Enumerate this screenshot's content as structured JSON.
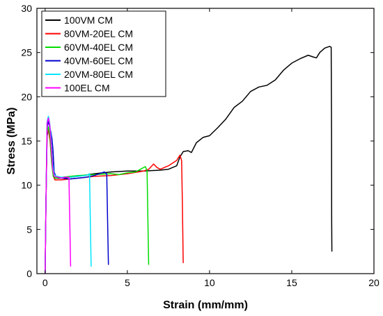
{
  "chart_data": {
    "type": "line",
    "title": "",
    "xlabel": "Strain (mm/mm)",
    "ylabel": "Stress (MPa)",
    "xlim": [
      -0.5,
      20
    ],
    "ylim": [
      0,
      30
    ],
    "xticks": [
      0,
      5,
      10,
      15,
      20
    ],
    "yticks": [
      0,
      5,
      10,
      15,
      20,
      25,
      30
    ],
    "grid": false,
    "legend_position": "top-left",
    "series": [
      {
        "name": "100VM CM",
        "color": "#000000",
        "points": [
          [
            0,
            0
          ],
          [
            0.05,
            8
          ],
          [
            0.12,
            15.5
          ],
          [
            0.2,
            16.4
          ],
          [
            0.3,
            15.6
          ],
          [
            0.4,
            14.2
          ],
          [
            0.5,
            11.2
          ],
          [
            0.6,
            10.8
          ],
          [
            1,
            10.8
          ],
          [
            2,
            11.0
          ],
          [
            3,
            11.3
          ],
          [
            4,
            11.5
          ],
          [
            5,
            11.6
          ],
          [
            6,
            11.6
          ],
          [
            7,
            11.7
          ],
          [
            7.5,
            11.8
          ],
          [
            8,
            12.2
          ],
          [
            8.2,
            13.2
          ],
          [
            8.4,
            13.8
          ],
          [
            8.7,
            13.9
          ],
          [
            8.9,
            13.7
          ],
          [
            9.2,
            14.8
          ],
          [
            9.6,
            15.4
          ],
          [
            10,
            15.6
          ],
          [
            10.5,
            16.5
          ],
          [
            11,
            17.5
          ],
          [
            11.5,
            18.8
          ],
          [
            12,
            19.5
          ],
          [
            12.5,
            20.6
          ],
          [
            13,
            21.1
          ],
          [
            13.5,
            21.3
          ],
          [
            14,
            21.9
          ],
          [
            14.5,
            23.0
          ],
          [
            15,
            23.8
          ],
          [
            15.5,
            24.3
          ],
          [
            16,
            24.7
          ],
          [
            16.3,
            24.5
          ],
          [
            16.5,
            24.4
          ],
          [
            16.7,
            25.0
          ],
          [
            17,
            25.5
          ],
          [
            17.3,
            25.7
          ],
          [
            17.4,
            25.6
          ],
          [
            17.42,
            16
          ],
          [
            17.43,
            6
          ],
          [
            17.44,
            2.5
          ]
        ]
      },
      {
        "name": "80VM-20EL CM",
        "color": "#ff0000",
        "points": [
          [
            0,
            0
          ],
          [
            0.05,
            8
          ],
          [
            0.12,
            15.8
          ],
          [
            0.2,
            16.3
          ],
          [
            0.3,
            15.0
          ],
          [
            0.4,
            12.5
          ],
          [
            0.5,
            11.0
          ],
          [
            0.6,
            10.6
          ],
          [
            1,
            10.6
          ],
          [
            2,
            10.8
          ],
          [
            3,
            11.0
          ],
          [
            4,
            11.1
          ],
          [
            5,
            11.3
          ],
          [
            6,
            11.6
          ],
          [
            6.3,
            11.8
          ],
          [
            6.6,
            12.4
          ],
          [
            6.8,
            12.0
          ],
          [
            7,
            11.8
          ],
          [
            7.5,
            12.2
          ],
          [
            8,
            12.8
          ],
          [
            8.2,
            13.4
          ],
          [
            8.3,
            12.8
          ],
          [
            8.35,
            8
          ],
          [
            8.4,
            1.2
          ]
        ]
      },
      {
        "name": "60VM-40EL CM",
        "color": "#00dd00",
        "points": [
          [
            0,
            0
          ],
          [
            0.05,
            8
          ],
          [
            0.12,
            16.0
          ],
          [
            0.2,
            16.6
          ],
          [
            0.3,
            15.5
          ],
          [
            0.4,
            12.5
          ],
          [
            0.5,
            11.0
          ],
          [
            0.6,
            10.8
          ],
          [
            1,
            10.9
          ],
          [
            2,
            11.1
          ],
          [
            3,
            11.2
          ],
          [
            4,
            11.3
          ],
          [
            4.5,
            11.2
          ],
          [
            5,
            11.4
          ],
          [
            5.5,
            11.5
          ],
          [
            5.8,
            11.8
          ],
          [
            6.1,
            12.1
          ],
          [
            6.2,
            11.6
          ],
          [
            6.25,
            6
          ],
          [
            6.3,
            1.0
          ]
        ]
      },
      {
        "name": "40VM-60EL CM",
        "color": "#0000cc",
        "points": [
          [
            0,
            0
          ],
          [
            0.05,
            8
          ],
          [
            0.12,
            16.5
          ],
          [
            0.2,
            17.2
          ],
          [
            0.28,
            16.6
          ],
          [
            0.35,
            16.0
          ],
          [
            0.42,
            15.2
          ],
          [
            0.48,
            14.0
          ],
          [
            0.55,
            11.5
          ],
          [
            0.65,
            11.0
          ],
          [
            1,
            10.8
          ],
          [
            1.5,
            10.7
          ],
          [
            2,
            10.8
          ],
          [
            2.5,
            10.9
          ],
          [
            3,
            11.1
          ],
          [
            3.3,
            11.3
          ],
          [
            3.6,
            11.5
          ],
          [
            3.75,
            11.3
          ],
          [
            3.8,
            6
          ],
          [
            3.85,
            1.0
          ]
        ]
      },
      {
        "name": "20VM-80EL CM",
        "color": "#00e5ff",
        "points": [
          [
            0,
            0
          ],
          [
            0.05,
            8
          ],
          [
            0.12,
            17.2
          ],
          [
            0.2,
            17.8
          ],
          [
            0.28,
            17.0
          ],
          [
            0.35,
            15.5
          ],
          [
            0.45,
            12.5
          ],
          [
            0.55,
            11.2
          ],
          [
            0.7,
            11.0
          ],
          [
            1,
            10.9
          ],
          [
            1.5,
            10.9
          ],
          [
            2,
            11.0
          ],
          [
            2.5,
            11.1
          ],
          [
            2.7,
            11.3
          ],
          [
            2.75,
            6
          ],
          [
            2.8,
            0.8
          ]
        ]
      },
      {
        "name": "100EL CM",
        "color": "#ff00ff",
        "points": [
          [
            0,
            0
          ],
          [
            0.05,
            8
          ],
          [
            0.12,
            17.0
          ],
          [
            0.2,
            17.6
          ],
          [
            0.28,
            16.8
          ],
          [
            0.35,
            15.0
          ],
          [
            0.45,
            12.0
          ],
          [
            0.55,
            11.0
          ],
          [
            0.8,
            10.9
          ],
          [
            1,
            10.8
          ],
          [
            1.2,
            10.9
          ],
          [
            1.45,
            10.9
          ],
          [
            1.5,
            6
          ],
          [
            1.55,
            0.8
          ]
        ]
      }
    ]
  }
}
